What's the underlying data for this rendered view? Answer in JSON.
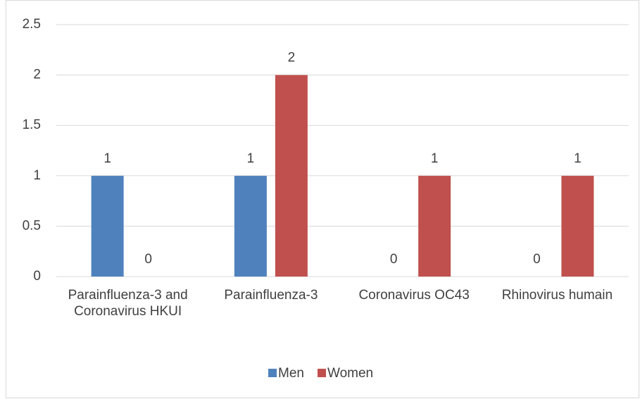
{
  "chart_data": {
    "type": "bar",
    "categories": [
      "Parainfluenza-3 and Coronavirus HKUI",
      "Parainfluenza-3",
      "Coronavirus OC43",
      "Rhinovirus humain"
    ],
    "series": [
      {
        "name": "Men",
        "color": "#4f81bd",
        "values": [
          1,
          1,
          0,
          0
        ]
      },
      {
        "name": "Women",
        "color": "#c0504d",
        "values": [
          0,
          2,
          1,
          1
        ]
      }
    ],
    "ylim": [
      0,
      2.5
    ],
    "yticks": [
      0,
      0.5,
      1,
      1.5,
      2,
      2.5
    ],
    "grid": true,
    "legend": "bottom"
  }
}
